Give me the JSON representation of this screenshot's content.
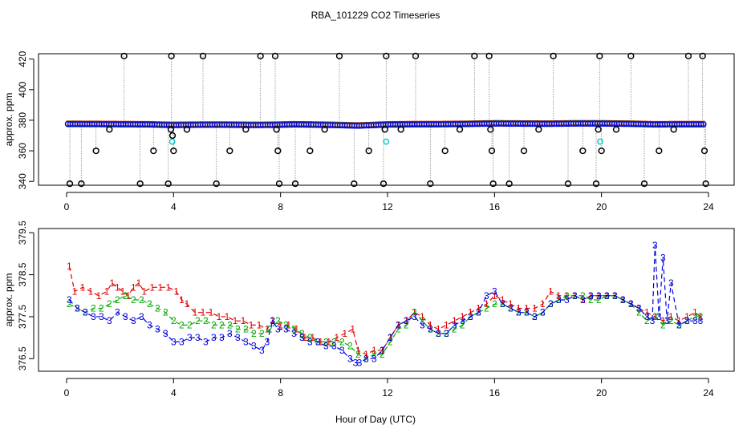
{
  "title": "RBA_101229  CO2 Timeseries",
  "xlabel": "Hour of Day (UTC)",
  "colors": {
    "series_1": "#e00000",
    "series_2": "#00aa00",
    "series_3": "#0000dd",
    "reference": "#00c8c8",
    "excursion": "#000000",
    "trace": "#888888"
  },
  "chart_data": [
    {
      "type": "scatter",
      "ylabel": "approx. ppm",
      "xlim": [
        0,
        24
      ],
      "ylim": [
        337.5,
        423.5
      ],
      "xticks": [
        "0",
        "4",
        "8",
        "12",
        "16",
        "20",
        "24"
      ],
      "yticks": [
        "340",
        "360",
        "380",
        "400",
        "420"
      ],
      "ytick_values": [
        340,
        360,
        380,
        400,
        420
      ],
      "baseline_hours": [
        0.0,
        1.0,
        2.0,
        3.0,
        4.0,
        5.0,
        6.0,
        7.0,
        7.7,
        8.5,
        9.0,
        10.0,
        10.9,
        12.0,
        13.0,
        14.0,
        15.0,
        16.0,
        17.0,
        18.0,
        19.0,
        20.0,
        21.0,
        22.0,
        23.0,
        23.8
      ],
      "baseline_ppm": [
        377.5,
        377.4,
        377.3,
        377.2,
        376.8,
        377.0,
        377.0,
        376.8,
        376.9,
        377.2,
        377.1,
        376.8,
        376.4,
        377.1,
        377.3,
        377.3,
        377.5,
        377.8,
        377.7,
        377.6,
        377.8,
        377.8,
        377.6,
        377.2,
        377.3,
        377.3
      ],
      "reference_points": [
        {
          "x": 3.95,
          "y": 366
        },
        {
          "x": 11.95,
          "y": 366
        },
        {
          "x": 19.95,
          "y": 366
        }
      ],
      "excursion_points": [
        {
          "x": 0.12,
          "y": 338.5
        },
        {
          "x": 0.55,
          "y": 338.5
        },
        {
          "x": 1.1,
          "y": 360
        },
        {
          "x": 1.6,
          "y": 374
        },
        {
          "x": 2.15,
          "y": 422
        },
        {
          "x": 2.75,
          "y": 338.5
        },
        {
          "x": 3.25,
          "y": 360
        },
        {
          "x": 3.8,
          "y": 338.5
        },
        {
          "x": 3.9,
          "y": 374
        },
        {
          "x": 3.92,
          "y": 422
        },
        {
          "x": 3.96,
          "y": 370
        },
        {
          "x": 4.0,
          "y": 360
        },
        {
          "x": 4.5,
          "y": 374
        },
        {
          "x": 5.1,
          "y": 422
        },
        {
          "x": 5.6,
          "y": 338.5
        },
        {
          "x": 6.1,
          "y": 360
        },
        {
          "x": 6.7,
          "y": 374
        },
        {
          "x": 7.25,
          "y": 422
        },
        {
          "x": 7.8,
          "y": 422
        },
        {
          "x": 7.85,
          "y": 374
        },
        {
          "x": 7.9,
          "y": 360
        },
        {
          "x": 7.95,
          "y": 338.5
        },
        {
          "x": 8.55,
          "y": 338.5
        },
        {
          "x": 9.1,
          "y": 360
        },
        {
          "x": 9.65,
          "y": 374
        },
        {
          "x": 10.2,
          "y": 422
        },
        {
          "x": 10.75,
          "y": 338.5
        },
        {
          "x": 11.3,
          "y": 360
        },
        {
          "x": 11.85,
          "y": 338.5
        },
        {
          "x": 11.9,
          "y": 374
        },
        {
          "x": 11.95,
          "y": 422
        },
        {
          "x": 12.5,
          "y": 374
        },
        {
          "x": 13.05,
          "y": 422
        },
        {
          "x": 13.6,
          "y": 338.5
        },
        {
          "x": 14.15,
          "y": 360
        },
        {
          "x": 14.7,
          "y": 374
        },
        {
          "x": 15.25,
          "y": 422
        },
        {
          "x": 15.8,
          "y": 422
        },
        {
          "x": 15.85,
          "y": 374
        },
        {
          "x": 15.9,
          "y": 360
        },
        {
          "x": 15.95,
          "y": 338.5
        },
        {
          "x": 16.55,
          "y": 338.5
        },
        {
          "x": 17.1,
          "y": 360
        },
        {
          "x": 17.65,
          "y": 374
        },
        {
          "x": 18.2,
          "y": 422
        },
        {
          "x": 18.75,
          "y": 338.5
        },
        {
          "x": 19.3,
          "y": 360
        },
        {
          "x": 19.8,
          "y": 338.5
        },
        {
          "x": 19.88,
          "y": 374
        },
        {
          "x": 19.93,
          "y": 422
        },
        {
          "x": 20.0,
          "y": 360
        },
        {
          "x": 20.55,
          "y": 374
        },
        {
          "x": 21.1,
          "y": 422
        },
        {
          "x": 21.6,
          "y": 338.5
        },
        {
          "x": 22.15,
          "y": 360
        },
        {
          "x": 22.7,
          "y": 374
        },
        {
          "x": 23.25,
          "y": 422
        },
        {
          "x": 23.78,
          "y": 422
        },
        {
          "x": 23.85,
          "y": 360
        },
        {
          "x": 23.9,
          "y": 338.5
        }
      ]
    },
    {
      "type": "line",
      "ylabel": "approx. ppm",
      "xlim": [
        0,
        24
      ],
      "ylim": [
        376.2,
        379.6
      ],
      "xticks": [
        "0",
        "4",
        "8",
        "12",
        "16",
        "20",
        "24"
      ],
      "yticks": [
        "376.5",
        "377.5",
        "378.5",
        "379.5"
      ],
      "ytick_values": [
        376.5,
        377.5,
        378.5,
        379.5
      ],
      "series": [
        {
          "name": "1",
          "x": [
            0.1,
            0.3,
            0.6,
            0.9,
            1.2,
            1.5,
            1.7,
            1.9,
            2.1,
            2.3,
            2.5,
            2.7,
            2.9,
            3.2,
            3.5,
            3.8,
            4.1,
            4.3,
            4.5,
            4.8,
            5.1,
            5.4,
            5.7,
            6.0,
            6.3,
            6.6,
            6.9,
            7.2,
            7.5,
            7.7,
            8.0,
            8.3,
            8.6,
            8.9,
            9.2,
            9.5,
            9.8,
            10.1,
            10.4,
            10.7,
            10.9,
            11.2,
            11.5,
            11.8,
            12.1,
            12.4,
            12.7,
            13.0,
            13.3,
            13.6,
            13.9,
            14.2,
            14.5,
            14.8,
            15.1,
            15.4,
            15.7,
            16.0,
            16.3,
            16.6,
            16.9,
            17.2,
            17.5,
            17.8,
            18.1,
            18.4,
            18.7,
            19.0,
            19.3,
            19.6,
            19.9,
            20.2,
            20.5,
            20.8,
            21.1,
            21.4,
            21.7,
            22.0,
            22.3,
            22.6,
            22.9,
            23.2,
            23.5,
            23.7
          ],
          "y": [
            378.7,
            378.1,
            378.2,
            378.1,
            378.0,
            378.1,
            378.3,
            378.2,
            378.1,
            378.0,
            378.2,
            378.3,
            378.1,
            378.2,
            378.2,
            378.2,
            378.1,
            377.9,
            377.8,
            377.6,
            377.6,
            377.6,
            377.5,
            377.5,
            377.4,
            377.4,
            377.3,
            377.3,
            377.2,
            377.4,
            377.3,
            377.3,
            377.2,
            377.0,
            377.0,
            376.9,
            376.9,
            377.0,
            377.1,
            377.2,
            376.7,
            376.6,
            376.7,
            376.7,
            377.0,
            377.3,
            377.4,
            377.6,
            377.5,
            377.3,
            377.2,
            377.3,
            377.4,
            377.5,
            377.6,
            377.7,
            377.8,
            378.0,
            377.9,
            377.8,
            377.7,
            377.7,
            377.7,
            377.8,
            378.1,
            378.0,
            378.0,
            378.0,
            377.9,
            378.0,
            378.0,
            378.0,
            378.0,
            377.9,
            377.8,
            377.7,
            377.6,
            377.5,
            377.4,
            377.5,
            377.4,
            377.5,
            377.6,
            377.5
          ]
        },
        {
          "name": "2",
          "x": [
            0.1,
            0.4,
            0.7,
            1.0,
            1.3,
            1.6,
            1.9,
            2.2,
            2.5,
            2.8,
            3.1,
            3.4,
            3.7,
            4.0,
            4.3,
            4.6,
            4.9,
            5.2,
            5.5,
            5.8,
            6.1,
            6.4,
            6.7,
            7.0,
            7.3,
            7.6,
            7.9,
            8.2,
            8.5,
            8.8,
            9.1,
            9.4,
            9.7,
            10.0,
            10.3,
            10.6,
            10.9,
            11.2,
            11.5,
            11.8,
            12.1,
            12.4,
            12.7,
            13.0,
            13.3,
            13.6,
            13.9,
            14.2,
            14.5,
            14.8,
            15.1,
            15.4,
            15.7,
            16.0,
            16.3,
            16.6,
            16.9,
            17.2,
            17.5,
            17.8,
            18.1,
            18.4,
            18.7,
            19.0,
            19.3,
            19.6,
            19.9,
            20.2,
            20.5,
            20.8,
            21.1,
            21.4,
            21.7,
            22.0,
            22.3,
            22.6,
            22.9,
            23.2,
            23.5,
            23.7
          ],
          "y": [
            377.8,
            377.7,
            377.6,
            377.7,
            377.7,
            377.8,
            377.9,
            378.0,
            377.9,
            377.9,
            377.8,
            377.7,
            377.6,
            377.4,
            377.3,
            377.3,
            377.4,
            377.4,
            377.3,
            377.3,
            377.3,
            377.2,
            377.2,
            377.1,
            377.1,
            377.2,
            377.4,
            377.3,
            377.2,
            377.1,
            377.0,
            376.9,
            376.9,
            376.9,
            376.9,
            376.8,
            376.6,
            376.5,
            376.6,
            376.6,
            376.9,
            377.2,
            377.3,
            377.6,
            377.4,
            377.2,
            377.1,
            377.1,
            377.2,
            377.3,
            377.5,
            377.6,
            377.7,
            377.8,
            377.8,
            377.7,
            377.6,
            377.6,
            377.5,
            377.6,
            377.8,
            377.9,
            378.0,
            378.0,
            378.0,
            377.9,
            377.9,
            378.0,
            378.0,
            377.9,
            377.8,
            377.6,
            377.4,
            377.5,
            377.3,
            377.4,
            377.3,
            377.4,
            377.5,
            377.5
          ]
        },
        {
          "name": "3",
          "x": [
            0.1,
            0.4,
            0.7,
            1.0,
            1.3,
            1.6,
            1.9,
            2.2,
            2.5,
            2.8,
            3.1,
            3.4,
            3.7,
            4.0,
            4.3,
            4.6,
            4.9,
            5.2,
            5.5,
            5.8,
            6.1,
            6.4,
            6.7,
            7.0,
            7.3,
            7.5,
            7.7,
            7.9,
            8.2,
            8.5,
            8.8,
            9.1,
            9.4,
            9.7,
            10.0,
            10.3,
            10.6,
            10.8,
            10.95,
            11.2,
            11.5,
            11.8,
            12.1,
            12.4,
            12.7,
            13.0,
            13.3,
            13.6,
            13.9,
            14.2,
            14.5,
            14.8,
            15.1,
            15.4,
            15.7,
            16.0,
            16.3,
            16.6,
            16.9,
            17.2,
            17.5,
            17.8,
            18.1,
            18.4,
            18.7,
            19.0,
            19.3,
            19.6,
            19.9,
            20.2,
            20.5,
            20.8,
            21.1,
            21.4,
            21.7,
            21.9,
            22.0,
            22.15,
            22.3,
            22.45,
            22.6,
            22.9,
            23.2,
            23.5,
            23.7
          ],
          "y": [
            377.9,
            377.7,
            377.6,
            377.5,
            377.5,
            377.4,
            377.6,
            377.5,
            377.4,
            377.5,
            377.3,
            377.2,
            377.1,
            376.9,
            376.9,
            377.0,
            377.0,
            376.9,
            377.0,
            377.0,
            377.1,
            377.0,
            376.9,
            376.8,
            376.7,
            376.9,
            377.4,
            377.2,
            377.2,
            377.1,
            377.0,
            376.9,
            376.9,
            376.8,
            376.8,
            376.7,
            376.5,
            376.4,
            376.4,
            376.5,
            376.5,
            376.7,
            377.0,
            377.3,
            377.4,
            377.5,
            377.3,
            377.2,
            377.1,
            377.1,
            377.3,
            377.4,
            377.5,
            377.6,
            378.0,
            378.1,
            377.8,
            377.7,
            377.6,
            377.6,
            377.5,
            377.6,
            377.8,
            377.9,
            377.9,
            378.0,
            377.9,
            378.0,
            378.0,
            378.0,
            378.0,
            377.9,
            377.8,
            377.7,
            377.5,
            377.4,
            379.2,
            377.5,
            378.9,
            377.4,
            378.3,
            377.3,
            377.4,
            377.4,
            377.4
          ]
        }
      ]
    }
  ]
}
